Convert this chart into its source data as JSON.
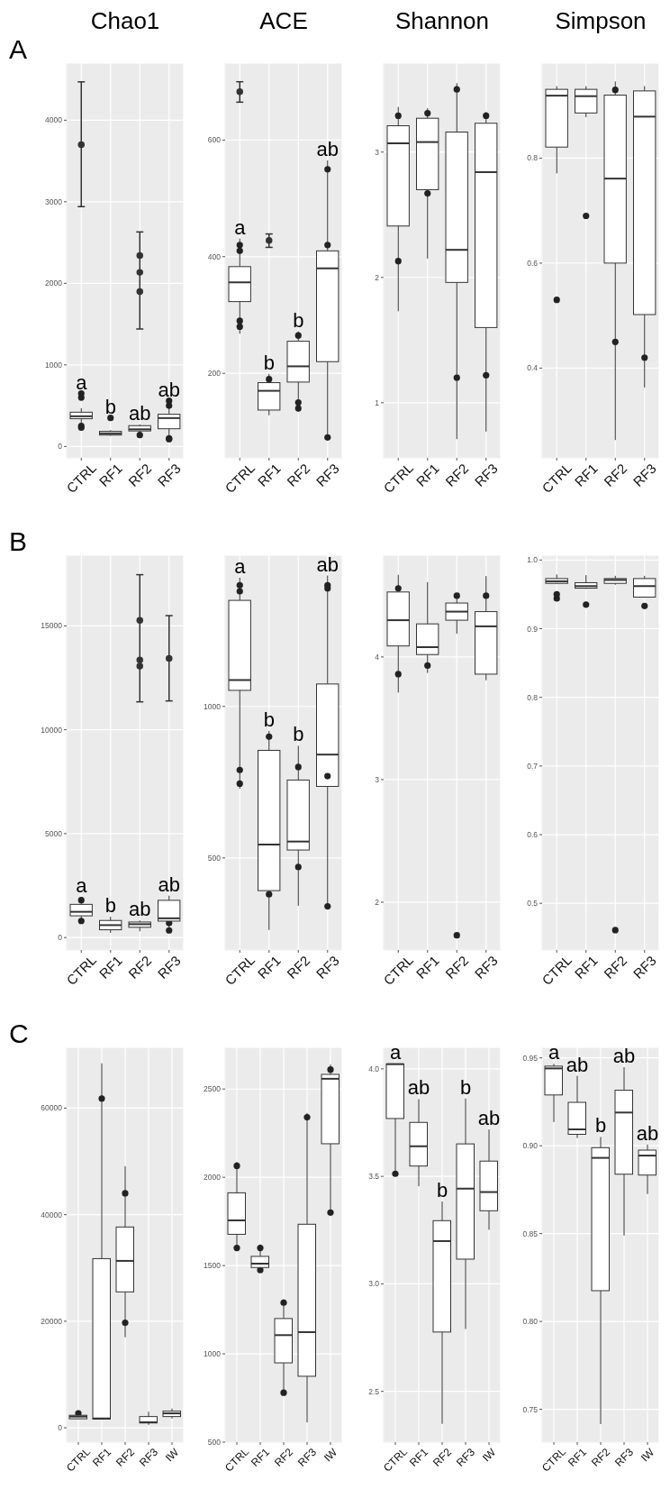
{
  "chart_data": [
    {
      "type": "box",
      "title": "Chao1",
      "categories": [
        "CTRL",
        "RF1",
        "RF2",
        "RF3"
      ],
      "ylim": [
        -140,
        4700
      ],
      "yticks": [
        0,
        1000,
        2000,
        3000,
        4000
      ],
      "grid": true,
      "boxes": [
        {
          "low": 200,
          "q1": 340,
          "median": 370,
          "q3": 420,
          "high": 470,
          "outliers": [
            600,
            650,
            250,
            230
          ]
        },
        {
          "low": 130,
          "q1": 140,
          "median": 160,
          "q3": 185,
          "high": 200,
          "outliers": [
            350
          ]
        },
        {
          "low": 170,
          "q1": 190,
          "median": 210,
          "q3": 255,
          "high": 270,
          "outliers": [
            140
          ]
        },
        {
          "low": 80,
          "q1": 217,
          "median": 348,
          "q3": 395,
          "high": 530,
          "outliers": [
            90,
            100,
            560,
            500
          ]
        }
      ],
      "series": [
        {
          "type": "scatter",
          "color": "#333333",
          "x": [
            "CTRL",
            "RF2"
          ],
          "values": [
            3700,
            1900
          ],
          "errors": [
            [
              2940,
              4470
            ],
            [
              1440,
              2630
            ]
          ]
        },
        {
          "type": "scatter",
          "color": "#333333",
          "x": [
            "RF2",
            "RF2"
          ],
          "values": [
            2135,
            2340
          ]
        }
      ],
      "annotations": [
        "A",
        "a",
        "b",
        "ab",
        "ab"
      ]
    },
    {
      "type": "box",
      "title": "ACE",
      "categories": [
        "CTRL",
        "RF1",
        "RF2",
        "RF3"
      ],
      "ylim": [
        55,
        732
      ],
      "yticks": [
        200,
        400,
        600
      ],
      "grid": true,
      "boxes": [
        {
          "low": 268,
          "q1": 323,
          "median": 356,
          "q3": 383,
          "high": 431,
          "outliers": [
            420,
            410,
            290,
            280
          ]
        },
        {
          "low": 128,
          "q1": 137,
          "median": 170,
          "q3": 184,
          "high": 199,
          "outliers": [
            190
          ]
        },
        {
          "low": 134,
          "q1": 185,
          "median": 212,
          "q3": 255,
          "high": 272,
          "outliers": [
            140,
            150,
            265
          ]
        },
        {
          "low": 88,
          "q1": 220,
          "median": 380,
          "q3": 410,
          "high": 565,
          "outliers": [
            550,
            90,
            420
          ]
        }
      ],
      "series": [
        {
          "type": "scatter",
          "color": "#333333",
          "x": [
            "CTRL",
            "RF1"
          ],
          "values": [
            683,
            428
          ],
          "errors": [
            [
              665,
              700
            ],
            [
              416,
              439
            ]
          ]
        }
      ],
      "annotations": [
        "a",
        "b",
        "b",
        "ab"
      ]
    },
    {
      "type": "box",
      "title": "Shannon",
      "categories": [
        "CTRL",
        "RF1",
        "RF2",
        "RF3"
      ],
      "ylim": [
        0.56,
        3.71
      ],
      "yticks": [
        1,
        2,
        3
      ],
      "grid": true,
      "boxes": [
        {
          "low": 1.73,
          "q1": 2.41,
          "median": 3.07,
          "q3": 3.21,
          "high": 3.36,
          "outliers": [
            3.29,
            2.13
          ]
        },
        {
          "low": 2.15,
          "q1": 2.7,
          "median": 3.08,
          "q3": 3.27,
          "high": 3.35,
          "outliers": [
            3.31,
            2.67
          ]
        },
        {
          "low": 0.71,
          "q1": 1.96,
          "median": 2.22,
          "q3": 3.16,
          "high": 3.55,
          "outliers": [
            3.5,
            1.2
          ]
        },
        {
          "low": 0.77,
          "q1": 1.6,
          "median": 2.84,
          "q3": 3.23,
          "high": 3.32,
          "outliers": [
            3.29,
            1.22
          ]
        }
      ]
    },
    {
      "type": "box",
      "title": "Simpson",
      "categories": [
        "CTRL",
        "RF1",
        "RF2",
        "RF3"
      ],
      "ylim": [
        0.229,
        0.981
      ],
      "yticks": [
        0.4,
        0.6,
        0.8
      ],
      "grid": true,
      "boxes": [
        {
          "low": 0.771,
          "q1": 0.821,
          "median": 0.919,
          "q3": 0.931,
          "high": 0.937,
          "outliers": [
            0.53
          ]
        },
        {
          "low": 0.878,
          "q1": 0.886,
          "median": 0.918,
          "q3": 0.931,
          "high": 0.937,
          "outliers": [
            0.69
          ]
        },
        {
          "low": 0.263,
          "q1": 0.6,
          "median": 0.761,
          "q3": 0.92,
          "high": 0.946,
          "outliers": [
            0.93,
            0.45
          ]
        },
        {
          "low": 0.363,
          "q1": 0.502,
          "median": 0.879,
          "q3": 0.928,
          "high": 0.937,
          "outliers": [
            0.42
          ]
        }
      ]
    },
    {
      "type": "box",
      "categories": [
        "CTRL",
        "RF1",
        "RF2",
        "RF3"
      ],
      "ylim": [
        -600,
        18400
      ],
      "yticks": [
        0,
        5000,
        10000,
        15000
      ],
      "grid": true,
      "boxes": [
        {
          "low": 746,
          "q1": 1045,
          "median": 1239,
          "q3": 1597,
          "high": 1940,
          "outliers": [
            1800,
            800
          ]
        },
        {
          "low": 224,
          "q1": 373,
          "median": 597,
          "q3": 821,
          "high": 1000
        },
        {
          "low": 300,
          "q1": 493,
          "median": 642,
          "q3": 746,
          "high": 821
        },
        {
          "low": 343,
          "q1": 791,
          "median": 925,
          "q3": 1791,
          "high": 2015,
          "outliers": [
            343,
            700
          ]
        }
      ],
      "series": [
        {
          "type": "scatter",
          "color": "#333333",
          "x": [
            "RF2",
            "RF3"
          ],
          "values": [
            13358,
            13433
          ],
          "errors": [
            [
              11343,
              17463
            ],
            [
              11388,
              15493
            ]
          ]
        },
        {
          "type": "scatter",
          "color": "#333333",
          "x": [
            "RF2",
            "RF2"
          ],
          "values": [
            15270,
            13060
          ]
        }
      ],
      "annotations": [
        "B",
        "a",
        "b",
        "ab",
        "ab"
      ]
    },
    {
      "type": "box",
      "categories": [
        "CTRL",
        "RF1",
        "RF2",
        "RF3"
      ],
      "ylim": [
        196,
        1499
      ],
      "yticks": [
        500,
        1000
      ],
      "grid": true,
      "boxes": [
        {
          "low": 728,
          "q1": 1053,
          "median": 1087,
          "q3": 1350,
          "high": 1425,
          "outliers": [
            1400,
            1380,
            790,
            745
          ]
        },
        {
          "low": 262,
          "q1": 392,
          "median": 544,
          "q3": 855,
          "high": 919,
          "outliers": [
            900,
            380
          ]
        },
        {
          "low": 342,
          "q1": 526,
          "median": 554,
          "q3": 757,
          "high": 870,
          "outliers": [
            800,
            470
          ]
        },
        {
          "low": 332,
          "q1": 736,
          "median": 841,
          "q3": 1074,
          "high": 1432,
          "outliers": [
            1400,
            1390,
            340,
            770
          ]
        }
      ],
      "annotations": [
        "a",
        "b",
        "b",
        "ab"
      ]
    },
    {
      "type": "box",
      "categories": [
        "CTRL",
        "RF1",
        "RF2",
        "RF3"
      ],
      "ylim": [
        1.61,
        4.83
      ],
      "yticks": [
        2,
        3,
        4
      ],
      "grid": true,
      "boxes": [
        {
          "low": 3.71,
          "q1": 4.09,
          "median": 4.3,
          "q3": 4.53,
          "high": 4.67,
          "outliers": [
            4.56,
            3.86
          ]
        },
        {
          "low": 3.87,
          "q1": 4.02,
          "median": 4.08,
          "q3": 4.27,
          "high": 4.61,
          "outliers": [
            3.93
          ]
        },
        {
          "low": 4.19,
          "q1": 4.3,
          "median": 4.37,
          "q3": 4.44,
          "high": 4.52,
          "outliers": [
            4.5,
            1.73
          ]
        },
        {
          "low": 3.81,
          "q1": 3.86,
          "median": 4.25,
          "q3": 4.37,
          "high": 4.66,
          "outliers": [
            4.5
          ]
        }
      ]
    },
    {
      "type": "box",
      "categories": [
        "CTRL",
        "RF1",
        "RF2",
        "RF3"
      ],
      "ylim": [
        0.432,
        1.007
      ],
      "yticks": [
        0.5,
        0.6,
        0.7,
        0.8,
        0.9,
        {
          "value": 1,
          "label": "1.0"
        }
      ],
      "grid": true,
      "boxes": [
        {
          "low": 0.965,
          "q1": 0.966,
          "median": 0.969,
          "q3": 0.973,
          "high": 0.979,
          "outliers": [
            0.944,
            0.95
          ]
        },
        {
          "low": 0.958,
          "q1": 0.959,
          "median": 0.962,
          "q3": 0.967,
          "high": 0.978,
          "outliers": [
            0.935
          ]
        },
        {
          "low": 0.964,
          "q1": 0.966,
          "median": 0.971,
          "q3": 0.973,
          "high": 0.977,
          "outliers": [
            0.461
          ]
        },
        {
          "low": 0.945,
          "q1": 0.946,
          "median": 0.962,
          "q3": 0.973,
          "high": 0.977,
          "outliers": [
            0.933
          ]
        }
      ]
    },
    {
      "type": "box",
      "categories": [
        "CTRL",
        "RF1",
        "RF2",
        "RF3",
        "IW"
      ],
      "ylim": [
        -2700,
        71400
      ],
      "yticks": [
        0,
        20000,
        40000,
        60000
      ],
      "grid": true,
      "boxes": [
        {
          "low": 1620,
          "q1": 1680,
          "median": 2100,
          "q3": 2340,
          "high": 2700,
          "outliers": [
            2700
          ]
        },
        {
          "low": 1500,
          "q1": 1620,
          "median": 1740,
          "q3": 31740,
          "high": 68400,
          "outliers": [
            61800
          ]
        },
        {
          "low": 16980,
          "q1": 25500,
          "median": 31320,
          "q3": 37680,
          "high": 49080,
          "outliers": [
            44000,
            19700
          ]
        },
        {
          "low": 540,
          "q1": 900,
          "median": 1020,
          "q3": 2100,
          "high": 3000
        },
        {
          "low": 1740,
          "q1": 2100,
          "median": 2700,
          "q3": 3120,
          "high": 3600
        }
      ],
      "annotations": [
        "C"
      ]
    },
    {
      "type": "box",
      "categories": [
        "CTRL",
        "RF1",
        "RF2",
        "RF3",
        "IW"
      ],
      "ylim": [
        500,
        2736
      ],
      "yticks": [
        500,
        1000,
        1500,
        2000,
        2500
      ],
      "grid": true,
      "boxes": [
        {
          "low": 1586,
          "q1": 1677,
          "median": 1756,
          "q3": 1912,
          "high": 2087,
          "outliers": [
            2065,
            1600
          ]
        },
        {
          "low": 1459,
          "q1": 1489,
          "median": 1511,
          "q3": 1552,
          "high": 1620,
          "outliers": [
            1600,
            1475
          ]
        },
        {
          "low": 790,
          "q1": 949,
          "median": 1106,
          "q3": 1200,
          "high": 1309,
          "outliers": [
            1290,
            780
          ]
        },
        {
          "low": 612,
          "q1": 873,
          "median": 1123,
          "q3": 1734,
          "high": 2364,
          "outliers": [
            2340
          ]
        },
        {
          "low": 1815,
          "q1": 2190,
          "median": 2558,
          "q3": 2583,
          "high": 2638,
          "outliers": [
            2610,
            1800
          ]
        }
      ]
    },
    {
      "type": "box",
      "categories": [
        "CTRL",
        "RF1",
        "RF2",
        "RF3",
        "IW"
      ],
      "ylim": [
        2.264,
        4.1
      ],
      "yticks": [
        {
          "value": 2.5,
          "label": "2.5"
        },
        {
          "value": 3,
          "label": "3.0"
        },
        {
          "value": 3.5,
          "label": "3.5"
        },
        {
          "value": 4,
          "label": "4.0"
        }
      ],
      "grid": true,
      "boxes": [
        {
          "low": 3.512,
          "q1": 3.769,
          "median": 4.022,
          "q3": 4.022,
          "high": 4.025,
          "outliers": [
            3.512
          ]
        },
        {
          "low": 3.454,
          "q1": 3.548,
          "median": 3.64,
          "q3": 3.751,
          "high": 3.859
        },
        {
          "low": 2.349,
          "q1": 2.776,
          "median": 3.199,
          "q3": 3.294,
          "high": 3.383
        },
        {
          "low": 2.79,
          "q1": 3.115,
          "median": 3.443,
          "q3": 3.651,
          "high": 3.862
        },
        {
          "low": 3.252,
          "q1": 3.34,
          "median": 3.427,
          "q3": 3.571,
          "high": 3.718
        }
      ],
      "annotations": [
        "a",
        "ab",
        "b",
        "b",
        "ab"
      ]
    },
    {
      "type": "box",
      "categories": [
        "CTRL",
        "RF1",
        "RF2",
        "RF3",
        "IW"
      ],
      "ylim": [
        0.7313,
        0.956
      ],
      "yticks": [
        0.75,
        {
          "value": 0.8,
          "label": "0.80"
        },
        0.85,
        {
          "value": 0.9,
          "label": "0.90"
        },
        0.95
      ],
      "grid": true,
      "boxes": [
        {
          "low": 0.9135,
          "q1": 0.9289,
          "median": 0.944,
          "q3": 0.9453,
          "high": 0.9467
        },
        {
          "low": 0.9044,
          "q1": 0.9065,
          "median": 0.9093,
          "q3": 0.9247,
          "high": 0.9398
        },
        {
          "low": 0.7416,
          "q1": 0.8175,
          "median": 0.8931,
          "q3": 0.8989,
          "high": 0.905
        },
        {
          "low": 0.8489,
          "q1": 0.8838,
          "median": 0.9189,
          "q3": 0.9316,
          "high": 0.9447
        },
        {
          "low": 0.8725,
          "q1": 0.8833,
          "median": 0.8944,
          "q3": 0.8975,
          "high": 0.9007
        }
      ],
      "annotations": [
        "a",
        "ab",
        "b",
        "ab",
        "ab"
      ]
    }
  ]
}
